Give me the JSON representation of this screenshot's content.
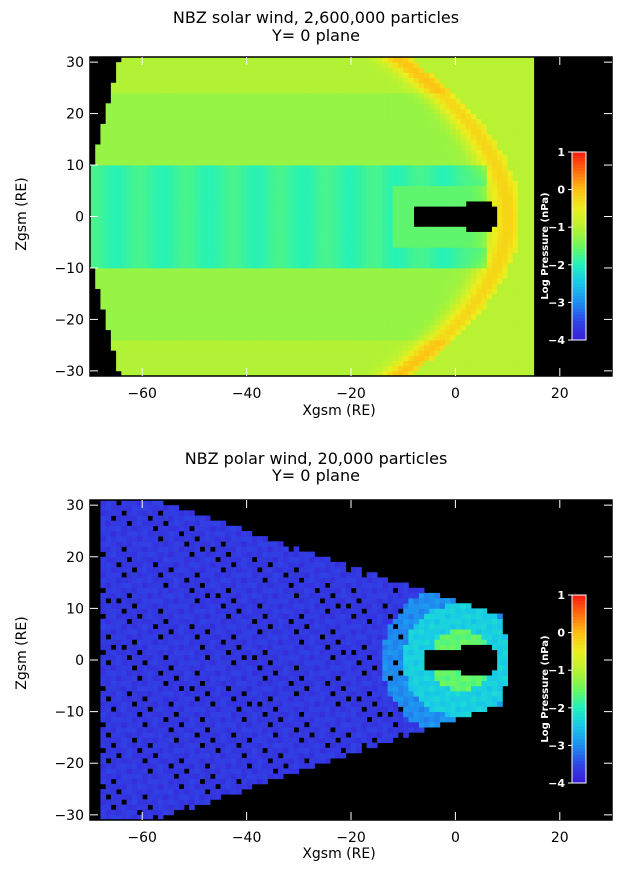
{
  "colors": {
    "background": "#000000",
    "colormap": [
      "#3a1cd6",
      "#2f46e6",
      "#1e8ef0",
      "#18c7e8",
      "#1ff2bf",
      "#6ff65b",
      "#b8f232",
      "#ecef1d",
      "#ffbf13",
      "#ff6a10",
      "#ff1a10"
    ]
  },
  "chart_data": [
    {
      "type": "heatmap",
      "title_line1": "NBZ solar wind, 2,600,000 particles",
      "title_line2": "Y= 0 plane",
      "xlabel": "Xgsm (RE)",
      "ylabel": "Zgsm (RE)",
      "xlim": [
        -70,
        30
      ],
      "ylim": [
        -31,
        31
      ],
      "xticks": [
        -60,
        -40,
        -20,
        0,
        20
      ],
      "yticks": [
        30,
        20,
        10,
        0,
        -10,
        -20,
        -30
      ],
      "colorbar": {
        "label": "Log Pressure (nPa)",
        "range": [
          -4,
          1
        ],
        "ticks": [
          1,
          0,
          -1,
          -2,
          -3,
          -4
        ]
      },
      "data_extent_x": [
        -70,
        15
      ],
      "description_levels": {
        "tail_center": -1.8,
        "tail_lobes": -1.3,
        "bow_shock": -0.5,
        "magnetosheath_outer": -1.0,
        "inner_cavity": "none"
      }
    },
    {
      "type": "heatmap",
      "title_line1": "NBZ polar wind, 20,000 particles",
      "title_line2": "Y= 0 plane",
      "xlabel": "Xgsm (RE)",
      "ylabel": "Zgsm (RE)",
      "xlim": [
        -70,
        30
      ],
      "ylim": [
        -31,
        31
      ],
      "xticks": [
        -60,
        -40,
        -20,
        0,
        20
      ],
      "yticks": [
        30,
        20,
        10,
        0,
        -10,
        -20,
        -30
      ],
      "colorbar": {
        "label": "Log Pressure (nPa)",
        "range": [
          -4,
          1
        ],
        "ticks": [
          1,
          0,
          -1,
          -2,
          -3,
          -4
        ]
      },
      "data_extent_x": [
        -68,
        10
      ],
      "description_levels": {
        "tail": -3.6,
        "ring_outer": -2.6,
        "ring_inner": -1.8,
        "inner_cavity": "none"
      }
    }
  ]
}
